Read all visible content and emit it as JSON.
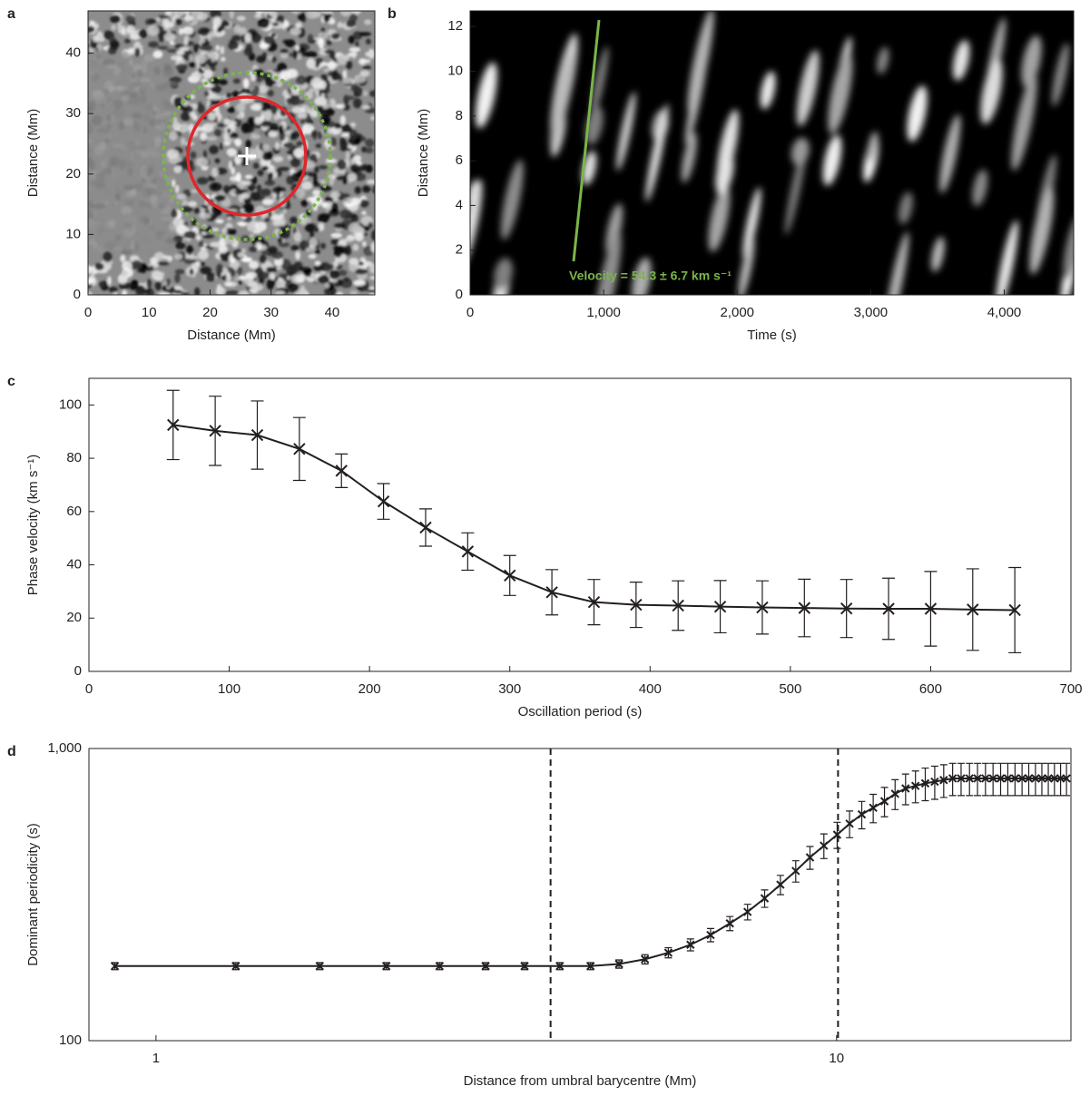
{
  "chart_data": [
    {
      "type": "image",
      "panel_label": "a",
      "xlabel": "Distance (Mm)",
      "ylabel": "Distance (Mm)",
      "xlim": [
        0,
        47
      ],
      "ylim": [
        0,
        47
      ],
      "xticks": [
        0,
        10,
        20,
        30,
        40
      ],
      "yticks": [
        0,
        10,
        20,
        30,
        40
      ]
    },
    {
      "type": "image",
      "panel_label": "b",
      "xlabel": "Time (s)",
      "ylabel": "Distance (Mm)",
      "annotation": "Velocity = 54.3 ± 6.7 km s⁻¹",
      "xlim": [
        0,
        4520
      ],
      "ylim": [
        0,
        12.7
      ],
      "xticks": [
        0,
        {
          "value": 1000,
          "label": "1,000"
        },
        {
          "value": 2000,
          "label": "2,000"
        },
        {
          "value": 3000,
          "label": "3,000"
        },
        {
          "value": 4000,
          "label": "4,000"
        }
      ],
      "yticks": [
        0,
        2,
        4,
        6,
        8,
        10,
        12
      ]
    },
    {
      "type": "line",
      "panel_label": "c",
      "xlabel": "Oscillation period (s)",
      "ylabel": "Phase velocity (km s⁻¹)",
      "xlim": [
        0,
        700
      ],
      "ylim": [
        0,
        110
      ],
      "xticks": [
        0,
        100,
        200,
        300,
        400,
        500,
        600,
        700
      ],
      "yticks": [
        0,
        20,
        40,
        60,
        80,
        100
      ],
      "color": "#231f20",
      "x": [
        60,
        90,
        120,
        150,
        180,
        210,
        240,
        270,
        300,
        330,
        360,
        390,
        420,
        450,
        480,
        510,
        540,
        570,
        600,
        630,
        660
      ],
      "values": [
        92.5,
        90.3,
        88.7,
        83.5,
        75.3,
        63.8,
        54,
        45,
        36,
        29.7,
        26,
        25,
        24.7,
        24.3,
        24,
        23.8,
        23.6,
        23.5,
        23.5,
        23.2,
        23
      ],
      "errors": [
        13,
        13,
        12.8,
        11.8,
        6.3,
        6.7,
        7,
        7,
        7.5,
        8.5,
        8.5,
        8.5,
        9.3,
        9.8,
        10,
        10.8,
        10.9,
        11.5,
        14,
        15.3,
        16
      ]
    },
    {
      "type": "line",
      "panel_label": "d",
      "xlabel": "Distance from umbral barycentre (Mm)",
      "ylabel": "Dominant periodicity (s)",
      "xscale": "log",
      "yscale": "log",
      "xlim": [
        0.797,
        22.1
      ],
      "ylim": [
        100,
        1000
      ],
      "xticks": [
        1,
        10
      ],
      "yticks": [
        100,
        {
          "value": 1000,
          "label": "1,000"
        }
      ],
      "vlines": [
        3.8,
        10.05
      ],
      "color": "#231f20",
      "x": [
        0.87,
        1.31,
        1.74,
        2.18,
        2.61,
        3.05,
        3.48,
        3.92,
        4.35,
        4.79,
        5.23,
        5.66,
        6.1,
        6.53,
        6.97,
        7.4,
        7.84,
        8.27,
        8.71,
        9.14,
        9.58,
        10.02,
        10.45,
        10.89,
        11.32,
        11.76,
        12.19,
        12.63,
        13.06,
        13.5,
        13.94,
        14.37,
        14.81,
        15.24,
        15.68,
        16.11,
        16.55,
        16.98,
        17.42,
        17.85,
        18.29,
        18.73,
        19.16,
        19.6,
        20.03,
        20.47,
        20.9,
        21.34,
        21.77
      ],
      "values": [
        180,
        180,
        180,
        180,
        180,
        180,
        180,
        180,
        180,
        183,
        190,
        200,
        213,
        230,
        252,
        276,
        307,
        342,
        381,
        424,
        465,
        507,
        553,
        595,
        627,
        660,
        700,
        730,
        745,
        760,
        770,
        780,
        790,
        790,
        790,
        790,
        790,
        790,
        790,
        790,
        790,
        790,
        790,
        790,
        790,
        790,
        790,
        790,
        790
      ],
      "errors": [
        5,
        5,
        5,
        5,
        5,
        5,
        5,
        5,
        5,
        6,
        7,
        8,
        10,
        12,
        14,
        17,
        21,
        26,
        32,
        38,
        45,
        52,
        58,
        64,
        70,
        76,
        82,
        88,
        93,
        97,
        100,
        100,
        100,
        100,
        100,
        100,
        100,
        100,
        100,
        100,
        100,
        100,
        100,
        100,
        100,
        100,
        100,
        100,
        100
      ]
    }
  ]
}
